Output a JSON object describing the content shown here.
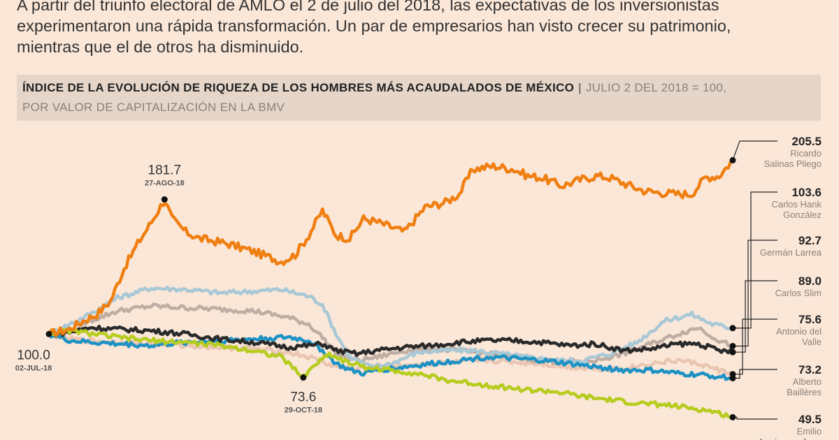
{
  "intro": {
    "line1": "A partir del triunfo electoral de AMLO el 2 de julio del 2018, las expectativas de los inversionistas",
    "line2": "experimentaron una rápida transformación. Un par de empresarios han visto crecer su patrimonio,",
    "line3": "mientras que el de otros ha disminuido."
  },
  "chart_data": {
    "type": "line",
    "title": "ÍNDICE DE LA EVOLUCIÓN DE RIQUEZA DE LOS HOMBRES MÁS ACAUDALADOS DE MÉXICO",
    "subtitle_part1": "JULIO 2 DEL 2018 = 100,",
    "subtitle_part2": "POR VALOR DE CAPITALIZACIÓN EN LA BMV",
    "separator": "|",
    "x_start": "02-JUL-18",
    "ylim": [
      45,
      215
    ],
    "annotations": [
      {
        "label": "100.0",
        "date": "02-JUL-18",
        "t": 0.0,
        "value": 100.0
      },
      {
        "label": "181.7",
        "date": "27-AGO-18",
        "t": 0.169,
        "value": 181.7
      },
      {
        "label": "73.6",
        "date": "29-OCT-18",
        "t": 0.372,
        "value": 73.6
      }
    ],
    "series": [
      {
        "name": "Ricardo Salinas Pliego",
        "name_lines": [
          "Ricardo",
          "Salinas Pliego"
        ],
        "end_label": "205.5",
        "color": "#f07f12",
        "end": 205.5,
        "keys": [
          [
            0,
            100
          ],
          [
            0.03,
            103
          ],
          [
            0.05,
            108
          ],
          [
            0.07,
            112
          ],
          [
            0.09,
            120
          ],
          [
            0.11,
            140
          ],
          [
            0.13,
            155
          ],
          [
            0.15,
            168
          ],
          [
            0.169,
            181.7
          ],
          [
            0.18,
            170
          ],
          [
            0.2,
            162
          ],
          [
            0.22,
            158
          ],
          [
            0.26,
            155
          ],
          [
            0.3,
            150
          ],
          [
            0.34,
            144
          ],
          [
            0.36,
            148
          ],
          [
            0.38,
            160
          ],
          [
            0.4,
            175
          ],
          [
            0.42,
            160
          ],
          [
            0.44,
            158
          ],
          [
            0.46,
            170
          ],
          [
            0.48,
            168
          ],
          [
            0.5,
            165
          ],
          [
            0.52,
            162
          ],
          [
            0.55,
            177
          ],
          [
            0.58,
            180
          ],
          [
            0.6,
            185
          ],
          [
            0.62,
            200
          ],
          [
            0.65,
            202
          ],
          [
            0.68,
            200
          ],
          [
            0.7,
            196
          ],
          [
            0.72,
            195
          ],
          [
            0.75,
            190
          ],
          [
            0.78,
            194
          ],
          [
            0.8,
            196
          ],
          [
            0.82,
            195
          ],
          [
            0.85,
            190
          ],
          [
            0.87,
            187
          ],
          [
            0.89,
            186
          ],
          [
            0.92,
            185
          ],
          [
            0.94,
            185
          ],
          [
            0.96,
            195
          ],
          [
            0.98,
            196
          ],
          [
            1,
            205.5
          ]
        ]
      },
      {
        "name": "Carlos Hank González",
        "name_lines": [
          "Carlos Hank",
          "González"
        ],
        "end_label": "103.6",
        "color": "#a9c8d6",
        "end": 103.6,
        "keys": [
          [
            0,
            100
          ],
          [
            0.03,
            106
          ],
          [
            0.06,
            112
          ],
          [
            0.1,
            122
          ],
          [
            0.15,
            128
          ],
          [
            0.2,
            127
          ],
          [
            0.25,
            125
          ],
          [
            0.3,
            126
          ],
          [
            0.34,
            127
          ],
          [
            0.38,
            123
          ],
          [
            0.4,
            118
          ],
          [
            0.42,
            100
          ],
          [
            0.44,
            86
          ],
          [
            0.47,
            80
          ],
          [
            0.5,
            82
          ],
          [
            0.54,
            89
          ],
          [
            0.58,
            90
          ],
          [
            0.62,
            90
          ],
          [
            0.66,
            88
          ],
          [
            0.7,
            86
          ],
          [
            0.74,
            84
          ],
          [
            0.78,
            84
          ],
          [
            0.82,
            88
          ],
          [
            0.86,
            95
          ],
          [
            0.9,
            108
          ],
          [
            0.94,
            112
          ],
          [
            0.97,
            106
          ],
          [
            1,
            103.6
          ]
        ]
      },
      {
        "name": "Germán Larrea",
        "name_lines": [
          "Germán Larrea"
        ],
        "end_label": "92.7",
        "color": "#bfaea3",
        "end": 92.7,
        "keys": [
          [
            0,
            100
          ],
          [
            0.03,
            103
          ],
          [
            0.06,
            108
          ],
          [
            0.1,
            114
          ],
          [
            0.15,
            117
          ],
          [
            0.2,
            116
          ],
          [
            0.25,
            115
          ],
          [
            0.3,
            114
          ],
          [
            0.35,
            110
          ],
          [
            0.38,
            106
          ],
          [
            0.4,
            98
          ],
          [
            0.42,
            88
          ],
          [
            0.45,
            84
          ],
          [
            0.48,
            86
          ],
          [
            0.52,
            90
          ],
          [
            0.56,
            91
          ],
          [
            0.6,
            90
          ],
          [
            0.64,
            88
          ],
          [
            0.68,
            86
          ],
          [
            0.72,
            84
          ],
          [
            0.76,
            83
          ],
          [
            0.8,
            84
          ],
          [
            0.84,
            88
          ],
          [
            0.88,
            94
          ],
          [
            0.92,
            100
          ],
          [
            0.95,
            104
          ],
          [
            0.98,
            96
          ],
          [
            1,
            92.7
          ]
        ]
      },
      {
        "name": "Carlos Slim",
        "name_lines": [
          "Carlos Slim"
        ],
        "end_label": "89.0",
        "color": "#2a2a2a",
        "end": 89.0,
        "keys": [
          [
            0,
            100
          ],
          [
            0.03,
            101
          ],
          [
            0.06,
            104
          ],
          [
            0.1,
            103
          ],
          [
            0.15,
            102
          ],
          [
            0.2,
            100
          ],
          [
            0.25,
            97
          ],
          [
            0.3,
            95
          ],
          [
            0.35,
            92
          ],
          [
            0.38,
            93
          ],
          [
            0.4,
            94
          ],
          [
            0.42,
            90
          ],
          [
            0.45,
            88
          ],
          [
            0.48,
            90
          ],
          [
            0.52,
            92
          ],
          [
            0.56,
            93
          ],
          [
            0.6,
            95
          ],
          [
            0.64,
            96
          ],
          [
            0.68,
            96
          ],
          [
            0.72,
            95
          ],
          [
            0.76,
            93
          ],
          [
            0.8,
            94
          ],
          [
            0.84,
            90
          ],
          [
            0.88,
            91
          ],
          [
            0.92,
            94
          ],
          [
            0.95,
            94
          ],
          [
            0.98,
            90
          ],
          [
            1,
            89.0
          ]
        ]
      },
      {
        "name": "Antonio del Valle",
        "name_lines": [
          "Antonio del",
          "Valle"
        ],
        "end_label": "75.6",
        "color": "#eac6b2",
        "end": 75.6,
        "keys": [
          [
            0,
            100
          ],
          [
            0.03,
            97
          ],
          [
            0.06,
            96
          ],
          [
            0.1,
            95
          ],
          [
            0.15,
            94
          ],
          [
            0.2,
            93
          ],
          [
            0.25,
            92
          ],
          [
            0.3,
            91
          ],
          [
            0.35,
            89
          ],
          [
            0.38,
            86
          ],
          [
            0.4,
            83
          ],
          [
            0.42,
            80
          ],
          [
            0.45,
            79
          ],
          [
            0.48,
            80
          ],
          [
            0.52,
            81
          ],
          [
            0.56,
            82
          ],
          [
            0.6,
            83
          ],
          [
            0.64,
            84
          ],
          [
            0.68,
            83
          ],
          [
            0.72,
            82
          ],
          [
            0.76,
            80
          ],
          [
            0.8,
            79
          ],
          [
            0.84,
            79
          ],
          [
            0.88,
            82
          ],
          [
            0.92,
            84
          ],
          [
            0.95,
            82
          ],
          [
            0.98,
            78
          ],
          [
            1,
            75.6
          ]
        ]
      },
      {
        "name": "Alberto Baillères",
        "name_lines": [
          "Alberto",
          "Baillères"
        ],
        "end_label": "73.2",
        "color": "#1d92c4",
        "end": 73.2,
        "keys": [
          [
            0,
            100
          ],
          [
            0.03,
            96
          ],
          [
            0.06,
            95
          ],
          [
            0.1,
            94
          ],
          [
            0.15,
            93
          ],
          [
            0.2,
            95
          ],
          [
            0.25,
            96
          ],
          [
            0.3,
            97
          ],
          [
            0.35,
            98
          ],
          [
            0.38,
            96
          ],
          [
            0.4,
            90
          ],
          [
            0.42,
            82
          ],
          [
            0.44,
            78
          ],
          [
            0.46,
            76
          ],
          [
            0.48,
            78
          ],
          [
            0.52,
            80
          ],
          [
            0.56,
            82
          ],
          [
            0.6,
            84
          ],
          [
            0.64,
            86
          ],
          [
            0.68,
            85
          ],
          [
            0.72,
            84
          ],
          [
            0.76,
            82
          ],
          [
            0.8,
            80
          ],
          [
            0.84,
            78
          ],
          [
            0.88,
            78
          ],
          [
            0.92,
            76
          ],
          [
            0.96,
            75
          ],
          [
            1,
            73.2
          ]
        ]
      },
      {
        "name": "Emilio Azcárraga Jean",
        "name_lines": [
          "Emilio",
          "Azcárraga Jean"
        ],
        "end_label": "49.5",
        "color": "#b6cc1e",
        "end": 49.5,
        "keys": [
          [
            0,
            100
          ],
          [
            0.03,
            102
          ],
          [
            0.05,
            101
          ],
          [
            0.1,
            98
          ],
          [
            0.15,
            96
          ],
          [
            0.2,
            95
          ],
          [
            0.25,
            93
          ],
          [
            0.3,
            90
          ],
          [
            0.34,
            86
          ],
          [
            0.372,
            73.6
          ],
          [
            0.39,
            82
          ],
          [
            0.41,
            88
          ],
          [
            0.43,
            84
          ],
          [
            0.46,
            80
          ],
          [
            0.5,
            78
          ],
          [
            0.54,
            76
          ],
          [
            0.58,
            72
          ],
          [
            0.62,
            70
          ],
          [
            0.66,
            68
          ],
          [
            0.7,
            66
          ],
          [
            0.74,
            65
          ],
          [
            0.78,
            62
          ],
          [
            0.82,
            60
          ],
          [
            0.86,
            58
          ],
          [
            0.9,
            57
          ],
          [
            0.94,
            55
          ],
          [
            0.97,
            53
          ],
          [
            1,
            49.5
          ]
        ]
      }
    ]
  }
}
